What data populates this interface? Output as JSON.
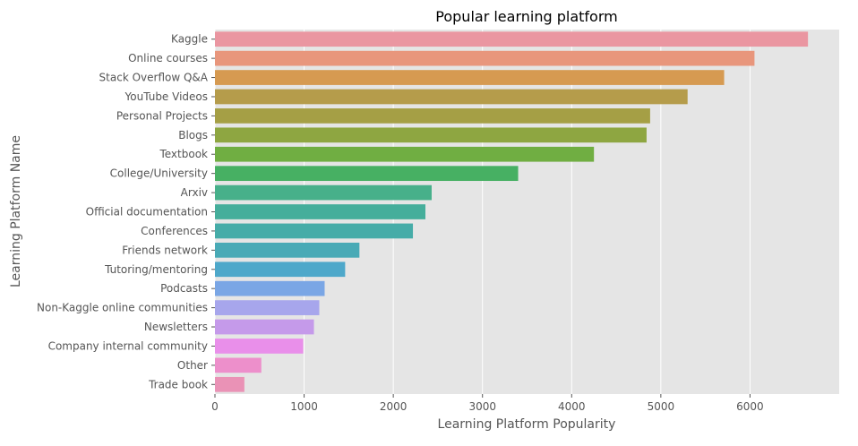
{
  "chart_data": {
    "type": "bar",
    "orientation": "horizontal",
    "title": "Popular learning platform",
    "xlabel": "Learning Platform Popularity",
    "ylabel": "Learning Platform Name",
    "xlim": [
      0,
      7000
    ],
    "xticks": [
      0,
      1000,
      2000,
      3000,
      4000,
      5000,
      6000
    ],
    "grid": true,
    "categories": [
      "Kaggle",
      "Online courses",
      "Stack Overflow Q&A",
      "YouTube Videos",
      "Personal Projects",
      "Blogs",
      "Textbook",
      "College/University",
      "Arxiv",
      "Official documentation",
      "Conferences",
      "Friends network",
      "Tutoring/mentoring",
      "Podcasts",
      "Non-Kaggle online communities",
      "Newsletters",
      "Company internal community",
      "Other",
      "Trade book"
    ],
    "values": [
      6650,
      6050,
      5710,
      5300,
      4880,
      4840,
      4250,
      3400,
      2430,
      2360,
      2220,
      1620,
      1460,
      1230,
      1170,
      1110,
      990,
      520,
      330
    ],
    "colors": [
      "#ea96a1",
      "#e8967c",
      "#d69a51",
      "#b59c4b",
      "#a59f45",
      "#8ea641",
      "#70ae42",
      "#47b063",
      "#47b08a",
      "#45ae9b",
      "#46aca8",
      "#49aab6",
      "#4ea8ca",
      "#7aa6e5",
      "#a7a6ec",
      "#c59aea",
      "#e98fea",
      "#ed8fcb",
      "#ea92b6"
    ]
  }
}
